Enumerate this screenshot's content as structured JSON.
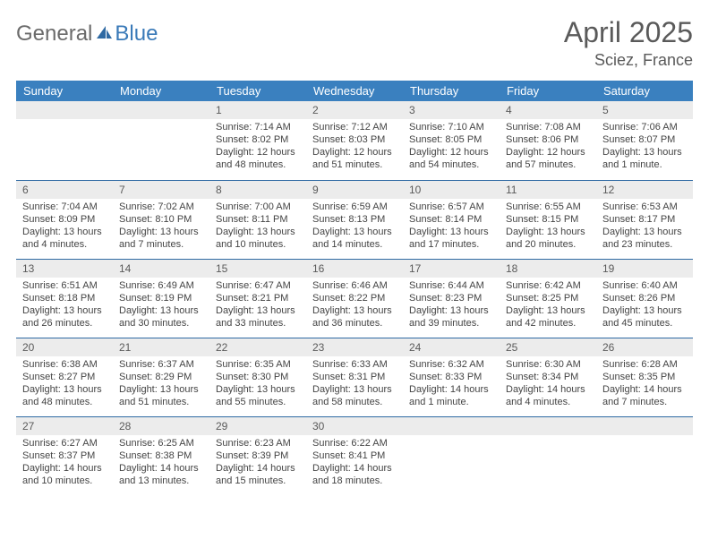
{
  "logo": {
    "word1": "General",
    "word2": "Blue"
  },
  "header": {
    "title": "April 2025",
    "location": "Sciez, France"
  },
  "colors": {
    "header_bg": "#3a80bf",
    "header_text": "#ffffff",
    "daynum_bg": "#ececec",
    "divider": "#2f6aa3",
    "text": "#444444",
    "title_text": "#5a5a5a"
  },
  "weekdays": [
    "Sunday",
    "Monday",
    "Tuesday",
    "Wednesday",
    "Thursday",
    "Friday",
    "Saturday"
  ],
  "weeks": [
    [
      {
        "day": "",
        "lines": [
          "",
          "",
          ""
        ]
      },
      {
        "day": "",
        "lines": [
          "",
          "",
          ""
        ]
      },
      {
        "day": "1",
        "lines": [
          "Sunrise: 7:14 AM",
          "Sunset: 8:02 PM",
          "Daylight: 12 hours and 48 minutes."
        ]
      },
      {
        "day": "2",
        "lines": [
          "Sunrise: 7:12 AM",
          "Sunset: 8:03 PM",
          "Daylight: 12 hours and 51 minutes."
        ]
      },
      {
        "day": "3",
        "lines": [
          "Sunrise: 7:10 AM",
          "Sunset: 8:05 PM",
          "Daylight: 12 hours and 54 minutes."
        ]
      },
      {
        "day": "4",
        "lines": [
          "Sunrise: 7:08 AM",
          "Sunset: 8:06 PM",
          "Daylight: 12 hours and 57 minutes."
        ]
      },
      {
        "day": "5",
        "lines": [
          "Sunrise: 7:06 AM",
          "Sunset: 8:07 PM",
          "Daylight: 13 hours and 1 minute."
        ]
      }
    ],
    [
      {
        "day": "6",
        "lines": [
          "Sunrise: 7:04 AM",
          "Sunset: 8:09 PM",
          "Daylight: 13 hours and 4 minutes."
        ]
      },
      {
        "day": "7",
        "lines": [
          "Sunrise: 7:02 AM",
          "Sunset: 8:10 PM",
          "Daylight: 13 hours and 7 minutes."
        ]
      },
      {
        "day": "8",
        "lines": [
          "Sunrise: 7:00 AM",
          "Sunset: 8:11 PM",
          "Daylight: 13 hours and 10 minutes."
        ]
      },
      {
        "day": "9",
        "lines": [
          "Sunrise: 6:59 AM",
          "Sunset: 8:13 PM",
          "Daylight: 13 hours and 14 minutes."
        ]
      },
      {
        "day": "10",
        "lines": [
          "Sunrise: 6:57 AM",
          "Sunset: 8:14 PM",
          "Daylight: 13 hours and 17 minutes."
        ]
      },
      {
        "day": "11",
        "lines": [
          "Sunrise: 6:55 AM",
          "Sunset: 8:15 PM",
          "Daylight: 13 hours and 20 minutes."
        ]
      },
      {
        "day": "12",
        "lines": [
          "Sunrise: 6:53 AM",
          "Sunset: 8:17 PM",
          "Daylight: 13 hours and 23 minutes."
        ]
      }
    ],
    [
      {
        "day": "13",
        "lines": [
          "Sunrise: 6:51 AM",
          "Sunset: 8:18 PM",
          "Daylight: 13 hours and 26 minutes."
        ]
      },
      {
        "day": "14",
        "lines": [
          "Sunrise: 6:49 AM",
          "Sunset: 8:19 PM",
          "Daylight: 13 hours and 30 minutes."
        ]
      },
      {
        "day": "15",
        "lines": [
          "Sunrise: 6:47 AM",
          "Sunset: 8:21 PM",
          "Daylight: 13 hours and 33 minutes."
        ]
      },
      {
        "day": "16",
        "lines": [
          "Sunrise: 6:46 AM",
          "Sunset: 8:22 PM",
          "Daylight: 13 hours and 36 minutes."
        ]
      },
      {
        "day": "17",
        "lines": [
          "Sunrise: 6:44 AM",
          "Sunset: 8:23 PM",
          "Daylight: 13 hours and 39 minutes."
        ]
      },
      {
        "day": "18",
        "lines": [
          "Sunrise: 6:42 AM",
          "Sunset: 8:25 PM",
          "Daylight: 13 hours and 42 minutes."
        ]
      },
      {
        "day": "19",
        "lines": [
          "Sunrise: 6:40 AM",
          "Sunset: 8:26 PM",
          "Daylight: 13 hours and 45 minutes."
        ]
      }
    ],
    [
      {
        "day": "20",
        "lines": [
          "Sunrise: 6:38 AM",
          "Sunset: 8:27 PM",
          "Daylight: 13 hours and 48 minutes."
        ]
      },
      {
        "day": "21",
        "lines": [
          "Sunrise: 6:37 AM",
          "Sunset: 8:29 PM",
          "Daylight: 13 hours and 51 minutes."
        ]
      },
      {
        "day": "22",
        "lines": [
          "Sunrise: 6:35 AM",
          "Sunset: 8:30 PM",
          "Daylight: 13 hours and 55 minutes."
        ]
      },
      {
        "day": "23",
        "lines": [
          "Sunrise: 6:33 AM",
          "Sunset: 8:31 PM",
          "Daylight: 13 hours and 58 minutes."
        ]
      },
      {
        "day": "24",
        "lines": [
          "Sunrise: 6:32 AM",
          "Sunset: 8:33 PM",
          "Daylight: 14 hours and 1 minute."
        ]
      },
      {
        "day": "25",
        "lines": [
          "Sunrise: 6:30 AM",
          "Sunset: 8:34 PM",
          "Daylight: 14 hours and 4 minutes."
        ]
      },
      {
        "day": "26",
        "lines": [
          "Sunrise: 6:28 AM",
          "Sunset: 8:35 PM",
          "Daylight: 14 hours and 7 minutes."
        ]
      }
    ],
    [
      {
        "day": "27",
        "lines": [
          "Sunrise: 6:27 AM",
          "Sunset: 8:37 PM",
          "Daylight: 14 hours and 10 minutes."
        ]
      },
      {
        "day": "28",
        "lines": [
          "Sunrise: 6:25 AM",
          "Sunset: 8:38 PM",
          "Daylight: 14 hours and 13 minutes."
        ]
      },
      {
        "day": "29",
        "lines": [
          "Sunrise: 6:23 AM",
          "Sunset: 8:39 PM",
          "Daylight: 14 hours and 15 minutes."
        ]
      },
      {
        "day": "30",
        "lines": [
          "Sunrise: 6:22 AM",
          "Sunset: 8:41 PM",
          "Daylight: 14 hours and 18 minutes."
        ]
      },
      {
        "day": "",
        "lines": [
          "",
          "",
          ""
        ]
      },
      {
        "day": "",
        "lines": [
          "",
          "",
          ""
        ]
      },
      {
        "day": "",
        "lines": [
          "",
          "",
          ""
        ]
      }
    ]
  ]
}
